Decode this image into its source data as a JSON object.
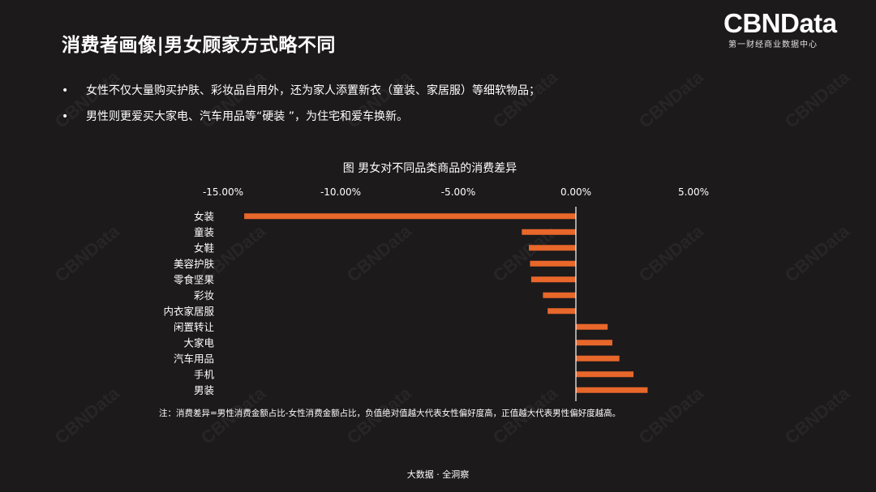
{
  "page": {
    "title": "消费者画像|男女顾家方式略不同",
    "logo_main": "CBNData",
    "logo_sub": "第一财经商业数据中心",
    "watermark_text": "CBNData",
    "bullets": [
      "女性不仅大量购买护肤、彩妆品自用外，还为家人添置新衣（童装、家居服）等细软物品；",
      "男性则更爱买大家电、汽车用品等“硬装 ”，为住宅和爱车换新。"
    ],
    "bullet_symbol": "•",
    "footer": "大数据 · 全洞察"
  },
  "colors": {
    "background": "#1c1a1b",
    "bar": "#e8672b",
    "text": "#ffffff",
    "axis": "#ffffff"
  },
  "chart_data": {
    "type": "bar",
    "orientation": "horizontal",
    "title": "图 男女对不同品类商品的消费差异",
    "categories": [
      "女装",
      "童装",
      "女鞋",
      "美容护肤",
      "零食坚果",
      "彩妆",
      "内衣家居服",
      "闲置转让",
      "大家电",
      "汽车用品",
      "手机",
      "男装"
    ],
    "values": [
      -14.1,
      -2.3,
      -2.0,
      -1.95,
      -1.9,
      -1.4,
      -1.2,
      1.35,
      1.55,
      1.85,
      2.45,
      3.05
    ],
    "xlim": [
      -15,
      5
    ],
    "xticks": [
      -15,
      -10,
      -5,
      0,
      5
    ],
    "xtick_labels": [
      "-15.00%",
      "-10.00%",
      "-5.00%",
      "0.00%",
      "5.00%"
    ],
    "xaxis_position": "top",
    "legend": "none",
    "grid": false,
    "note": "注：消费差异=男性消费金额占比-女性消费金额占比，负值绝对值越大代表女性偏好度高，正值越大代表男性偏好度越高。"
  }
}
